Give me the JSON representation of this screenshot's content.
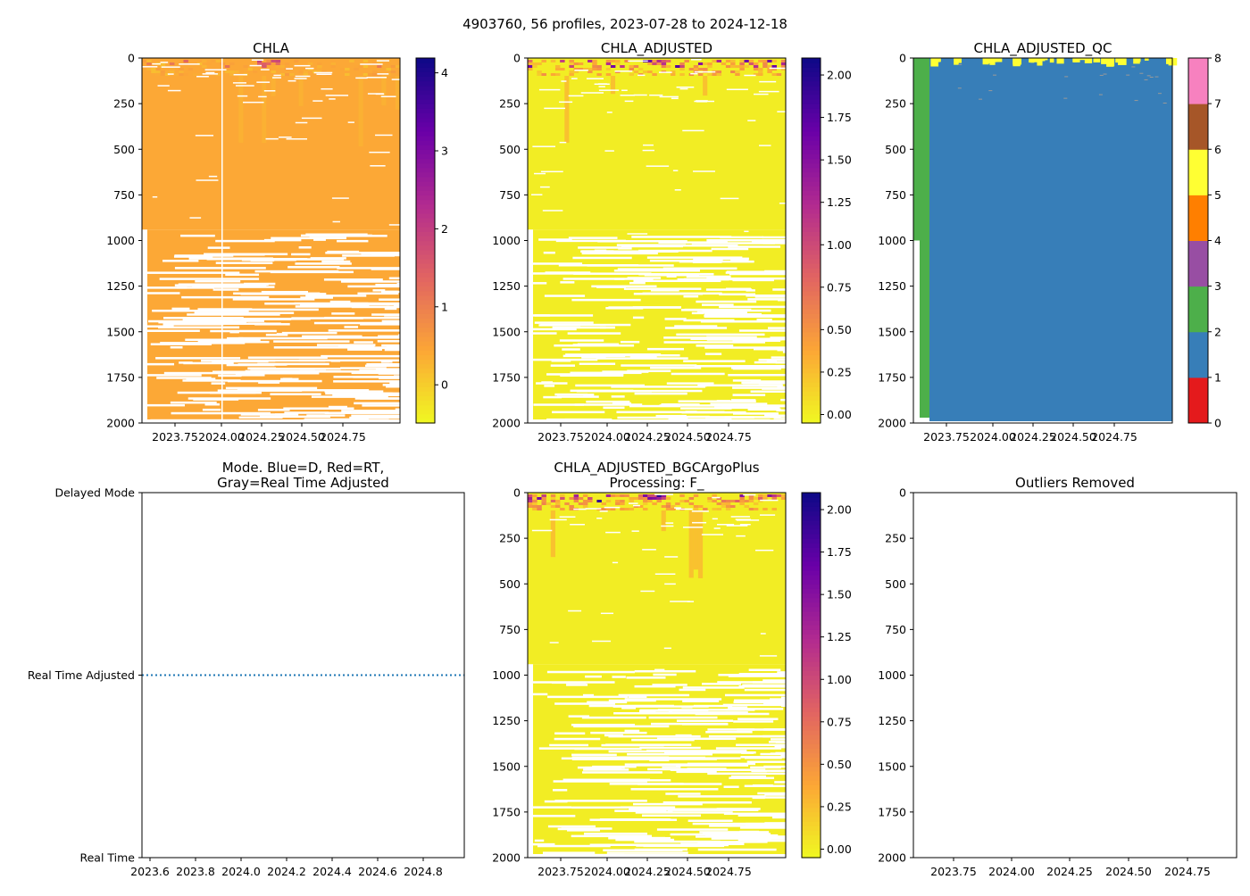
{
  "suptitle": "4903760, 56 profiles, 2023-07-28 to 2024-12-18",
  "chart_data": [
    {
      "id": "chla",
      "type": "heatmap",
      "title": "CHLA",
      "n_profiles": 56,
      "ylim": [
        2000,
        0
      ],
      "yticks": [
        "0",
        "250",
        "500",
        "750",
        "1000",
        "1250",
        "1500",
        "1750",
        "2000"
      ],
      "xlim": [
        2023.55,
        2024.96
      ],
      "xticks": [
        "2023.75",
        "2024.00",
        "2024.25",
        "2024.50",
        "2024.75"
      ],
      "colorbar": {
        "range": [
          -0.49,
          4.19
        ],
        "ticks": [
          "0",
          "1",
          "2",
          "3",
          "4"
        ],
        "cmap": "plasma_r"
      }
    },
    {
      "id": "chla_adj",
      "type": "heatmap",
      "title": "CHLA_ADJUSTED",
      "n_profiles": 56,
      "ylim": [
        2000,
        0
      ],
      "yticks": [
        "0",
        "250",
        "500",
        "750",
        "1000",
        "1250",
        "1500",
        "1750",
        "2000"
      ],
      "xlim": [
        2023.55,
        2024.96
      ],
      "xticks": [
        "2023.75",
        "2024.00",
        "2024.25",
        "2024.50",
        "2024.75"
      ],
      "colorbar": {
        "range": [
          -0.05,
          2.1
        ],
        "ticks": [
          "0.00",
          "0.25",
          "0.50",
          "0.75",
          "1.00",
          "1.25",
          "1.50",
          "1.75",
          "2.00"
        ],
        "cmap": "plasma_r"
      }
    },
    {
      "id": "qc",
      "type": "heatmap",
      "title": "CHLA_ADJUSTED_QC",
      "ylim": [
        2000,
        0
      ],
      "yticks": [
        "0",
        "250",
        "500",
        "750",
        "1000",
        "1250",
        "1500",
        "1750",
        "2000"
      ],
      "xlim": [
        2023.55,
        2024.96
      ],
      "xticks": [
        "2023.75",
        "2024.00",
        "2024.25",
        "2024.50",
        "2024.75"
      ],
      "colorbar": {
        "range": [
          0,
          8
        ],
        "ticks": [
          "0",
          "1",
          "2",
          "3",
          "4",
          "5",
          "6",
          "7",
          "8"
        ],
        "colors": [
          "#e41a1c",
          "#377eb8",
          "#4daf4a",
          "#984ea3",
          "#ff7f00",
          "#ffff33",
          "#a65628",
          "#f781bf",
          "#999999"
        ]
      }
    },
    {
      "id": "mode",
      "type": "line",
      "title": "Mode. Blue=D, Red=RT,\nGray=Real Time Adjusted",
      "yticks": [
        "Delayed Mode",
        "Real Time Adjusted",
        "Real Time"
      ],
      "xlim": [
        2023.58,
        2024.98
      ],
      "xticks": [
        "2023.6",
        "2023.8",
        "2024.0",
        "2024.2",
        "2024.4",
        "2024.6",
        "2024.8"
      ],
      "series": [
        {
          "name": "mode",
          "value": "Real Time Adjusted",
          "color": "#1f77b4",
          "style": "dotted"
        }
      ]
    },
    {
      "id": "bgc",
      "type": "heatmap",
      "title": "CHLA_ADJUSTED_BGCArgoPlus\nProcessing: F_",
      "n_profiles": 56,
      "ylim": [
        2000,
        0
      ],
      "yticks": [
        "0",
        "250",
        "500",
        "750",
        "1000",
        "1250",
        "1500",
        "1750",
        "2000"
      ],
      "xlim": [
        2023.55,
        2024.96
      ],
      "xticks": [
        "2023.75",
        "2024.00",
        "2024.25",
        "2024.50",
        "2024.75"
      ],
      "colorbar": {
        "range": [
          -0.05,
          2.1
        ],
        "ticks": [
          "0.00",
          "0.25",
          "0.50",
          "0.75",
          "1.00",
          "1.25",
          "1.50",
          "1.75",
          "2.00"
        ],
        "cmap": "plasma_r"
      }
    },
    {
      "id": "outliers",
      "type": "scatter",
      "title": "Outliers Removed",
      "ylim": [
        2000,
        0
      ],
      "yticks": [
        "0",
        "250",
        "500",
        "750",
        "1000",
        "1250",
        "1500",
        "1750",
        "2000"
      ],
      "xlim": [
        2023.57,
        2024.96
      ],
      "xticks": [
        "2023.75",
        "2024.00",
        "2024.25",
        "2024.50",
        "2024.75"
      ]
    }
  ]
}
